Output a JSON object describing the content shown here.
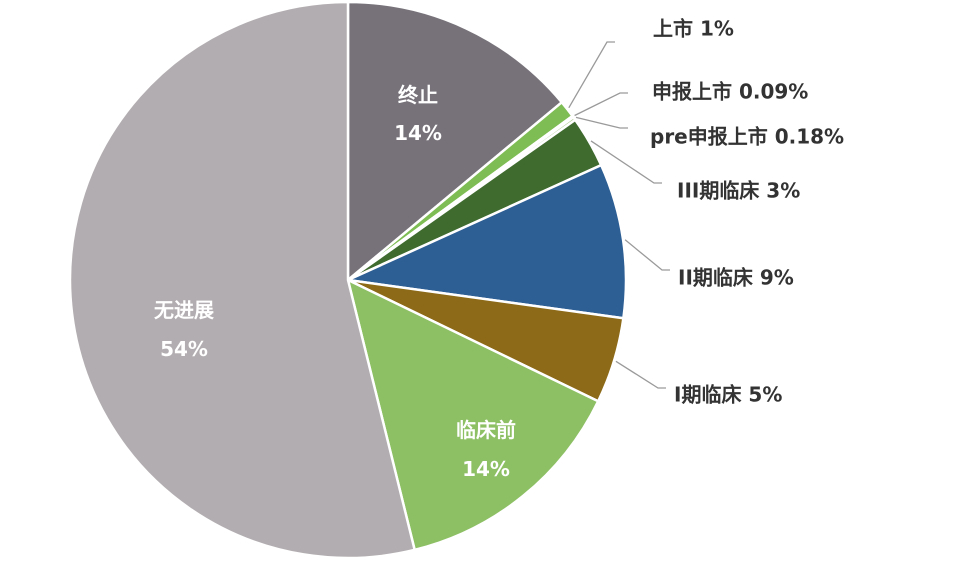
{
  "chart_data": {
    "type": "pie",
    "title": "",
    "slices": [
      {
        "name": "终止",
        "value": 14,
        "label": "14%",
        "color": "#77727a"
      },
      {
        "name": "上市",
        "value": 1,
        "label": "1%",
        "color": "#7ebd53"
      },
      {
        "name": "申报上市",
        "value": 0.09,
        "label": "0.09%",
        "color": "#c6d9a8"
      },
      {
        "name": "pre申报上市",
        "value": 0.18,
        "label": "0.18%",
        "color": "#a8c98a"
      },
      {
        "name": "III期临床",
        "value": 3,
        "label": "3%",
        "color": "#3f6b2f"
      },
      {
        "name": "II期临床",
        "value": 9,
        "label": "9%",
        "color": "#2d5e94"
      },
      {
        "name": "I期临床",
        "value": 5,
        "label": "5%",
        "color": "#8c6a17"
      },
      {
        "name": "临床前",
        "value": 14,
        "label": "14%",
        "color": "#8dbf64"
      },
      {
        "name": "无进展",
        "value": 54,
        "label": "54%",
        "color": "#b2adb0"
      }
    ],
    "outer_labels": [
      {
        "slice": "上市",
        "text": "上市 1%"
      },
      {
        "slice": "申报上市",
        "text": "申报上市 0.09%"
      },
      {
        "slice": "pre申报上市",
        "text": "pre申报上市 0.18%"
      },
      {
        "slice": "III期临床",
        "text": "III期临床 3%"
      },
      {
        "slice": "II期临床",
        "text": "II期临床 9%"
      },
      {
        "slice": "I期临床",
        "text": "I期临床 5%"
      }
    ],
    "inner_labels": [
      "终止",
      "临床前",
      "无进展"
    ],
    "legend": "none"
  }
}
